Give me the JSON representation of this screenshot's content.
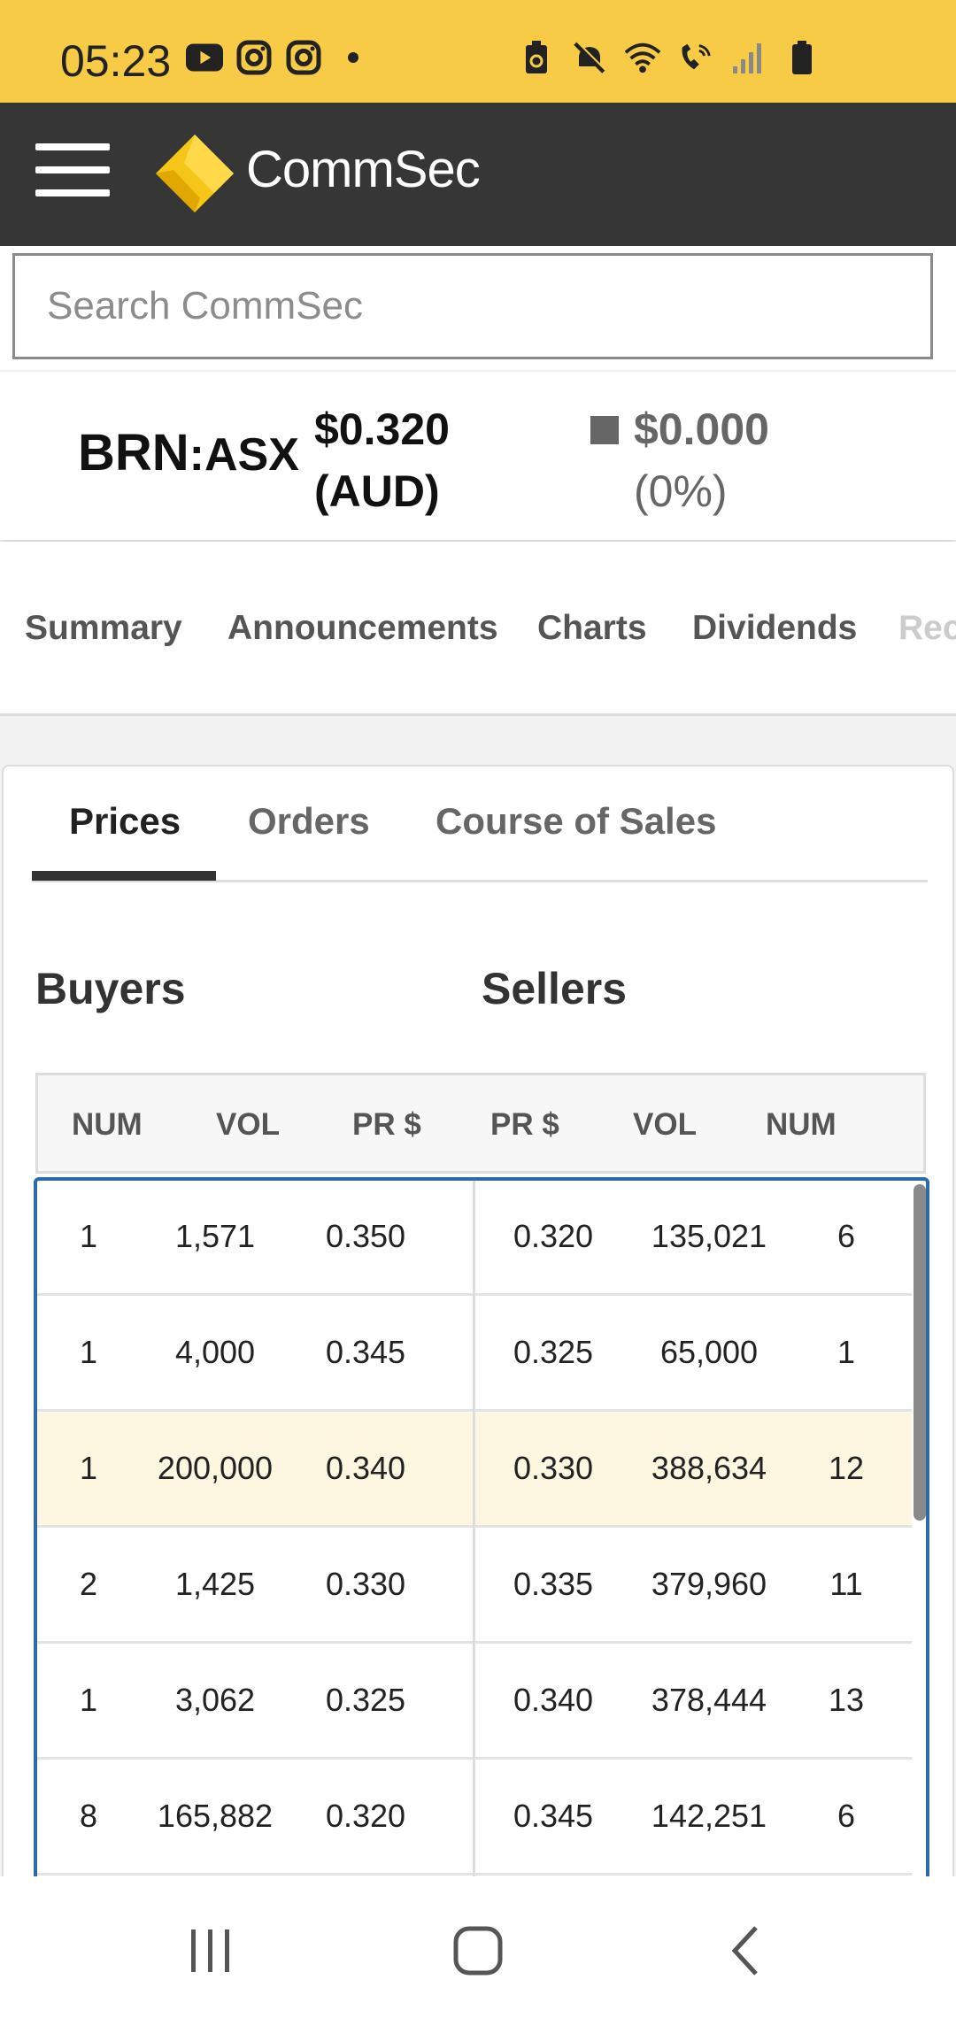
{
  "status_bar": {
    "time": "05:23",
    "left_icons": [
      "youtube-icon",
      "instagram-icon",
      "instagram-icon",
      "dot-icon"
    ],
    "right_icons": [
      "battery-saver-icon",
      "mute-icon",
      "wifi-icon",
      "wifi-call-icon",
      "signal-icon",
      "battery-icon"
    ]
  },
  "header": {
    "logo_text": "CommSec",
    "brand_color": "#f5c518"
  },
  "search": {
    "placeholder": "Search CommSec"
  },
  "quote": {
    "symbol": "BRN",
    "colon": ":",
    "exchange": "ASX",
    "price": "$0.320",
    "currency": "(AUD)",
    "change": "$0.000",
    "change_pct": "(0%)"
  },
  "section_tabs": [
    "Summary",
    "Announcements",
    "Charts",
    "Dividends",
    "Rec"
  ],
  "sub_tabs": {
    "prices": "Prices",
    "orders": "Orders",
    "course": "Course of Sales"
  },
  "depth": {
    "buyers_label": "Buyers",
    "sellers_label": "Sellers",
    "headers": [
      "NUM",
      "VOL",
      "PR $",
      "PR $",
      "VOL",
      "NUM"
    ],
    "rows": [
      [
        "1",
        "1,571",
        "0.350",
        "0.320",
        "135,021",
        "6"
      ],
      [
        "1",
        "4,000",
        "0.345",
        "0.325",
        "65,000",
        "1"
      ],
      [
        "1",
        "200,000",
        "0.340",
        "0.330",
        "388,634",
        "12"
      ],
      [
        "2",
        "1,425",
        "0.330",
        "0.335",
        "379,960",
        "11"
      ],
      [
        "1",
        "3,062",
        "0.325",
        "0.340",
        "378,444",
        "13"
      ],
      [
        "8",
        "165,882",
        "0.320",
        "0.345",
        "142,251",
        "6"
      ]
    ],
    "highlight_color": "#fdf6e1",
    "border_color": "#2e6aa4"
  },
  "nav": {
    "icons": [
      "recent-apps-icon",
      "home-icon",
      "back-icon"
    ]
  }
}
